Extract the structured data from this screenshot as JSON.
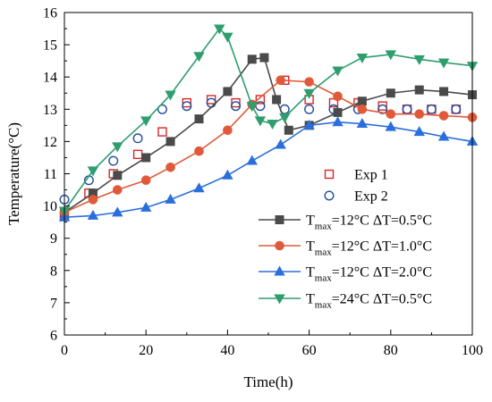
{
  "chart_data": {
    "type": "line",
    "xlabel": "Time(h)",
    "ylabel": "Temperature(°C)",
    "xlim": [
      0,
      100
    ],
    "ylim": [
      6,
      16
    ],
    "xticks": [
      0,
      20,
      40,
      60,
      80,
      100
    ],
    "yticks": [
      6,
      7,
      8,
      9,
      10,
      11,
      12,
      13,
      14,
      15,
      16
    ],
    "grid": false,
    "legend_position": "bottom-right",
    "series": [
      {
        "name": "Exp 1",
        "kind": "scatter",
        "marker": "square-open",
        "color": "#d62728",
        "x": [
          0,
          6,
          12,
          18,
          24,
          30,
          36,
          42,
          48,
          54,
          60,
          66,
          72,
          78,
          84,
          90,
          96
        ],
        "y": [
          9.7,
          10.4,
          11.0,
          11.6,
          12.3,
          13.2,
          13.3,
          13.2,
          13.3,
          13.9,
          13.3,
          13.2,
          13.2,
          13.1,
          13.0,
          13.0,
          13.0
        ]
      },
      {
        "name": "Exp 2",
        "kind": "scatter",
        "marker": "circle-open",
        "color": "#1f4e9e",
        "x": [
          0,
          6,
          12,
          18,
          24,
          30,
          36,
          42,
          48,
          54,
          60,
          66,
          72,
          78,
          84,
          90,
          96
        ],
        "y": [
          10.2,
          10.8,
          11.4,
          12.1,
          13.0,
          13.1,
          13.2,
          13.1,
          13.1,
          13.0,
          13.0,
          13.0,
          13.0,
          13.0,
          13.0,
          13.0,
          13.0
        ]
      },
      {
        "name_main": "T",
        "name_sub": "max",
        "name_rest": "=12°C ΔT=0.5°C",
        "kind": "line",
        "marker": "square",
        "color": "#4a4a4a",
        "x": [
          0,
          7,
          13,
          20,
          26,
          33,
          40,
          46,
          49,
          52,
          55,
          60,
          67,
          73,
          80,
          87,
          93,
          100
        ],
        "y": [
          9.8,
          10.4,
          10.95,
          11.5,
          12.0,
          12.7,
          13.55,
          14.55,
          14.6,
          13.3,
          12.35,
          12.5,
          12.9,
          13.25,
          13.5,
          13.6,
          13.55,
          13.45
        ]
      },
      {
        "name_main": "T",
        "name_sub": "max",
        "name_rest": "=12°C ΔT=1.0°C",
        "kind": "line",
        "marker": "circle",
        "color": "#e05a3a",
        "x": [
          0,
          7,
          13,
          20,
          26,
          33,
          40,
          46,
          53,
          60,
          67,
          73,
          80,
          87,
          93,
          100
        ],
        "y": [
          9.8,
          10.2,
          10.5,
          10.8,
          11.2,
          11.7,
          12.35,
          13.15,
          13.9,
          13.85,
          13.4,
          13.0,
          12.85,
          12.85,
          12.8,
          12.75
        ]
      },
      {
        "name_main": "T",
        "name_sub": "max",
        "name_rest": "=12°C ΔT=2.0°C",
        "kind": "line",
        "marker": "triangle-up",
        "color": "#2a6fdb",
        "x": [
          0,
          7,
          13,
          20,
          26,
          33,
          40,
          46,
          53,
          60,
          67,
          73,
          80,
          87,
          93,
          100
        ],
        "y": [
          9.65,
          9.7,
          9.8,
          9.95,
          10.2,
          10.55,
          10.95,
          11.4,
          11.9,
          12.5,
          12.6,
          12.55,
          12.45,
          12.3,
          12.15,
          12.0
        ]
      },
      {
        "name_main": "T",
        "name_sub": "max",
        "name_rest": "=24°C ΔT=0.5°C",
        "kind": "line",
        "marker": "triangle-down",
        "color": "#2e9e6e",
        "x": [
          0,
          7,
          13,
          20,
          26,
          33,
          38,
          40,
          46,
          48,
          51,
          54,
          60,
          67,
          73,
          80,
          87,
          93,
          100
        ],
        "y": [
          9.85,
          11.1,
          11.85,
          12.65,
          13.45,
          14.65,
          15.5,
          15.25,
          13.1,
          12.65,
          12.55,
          12.75,
          13.5,
          14.2,
          14.6,
          14.7,
          14.55,
          14.45,
          14.35
        ]
      }
    ]
  }
}
